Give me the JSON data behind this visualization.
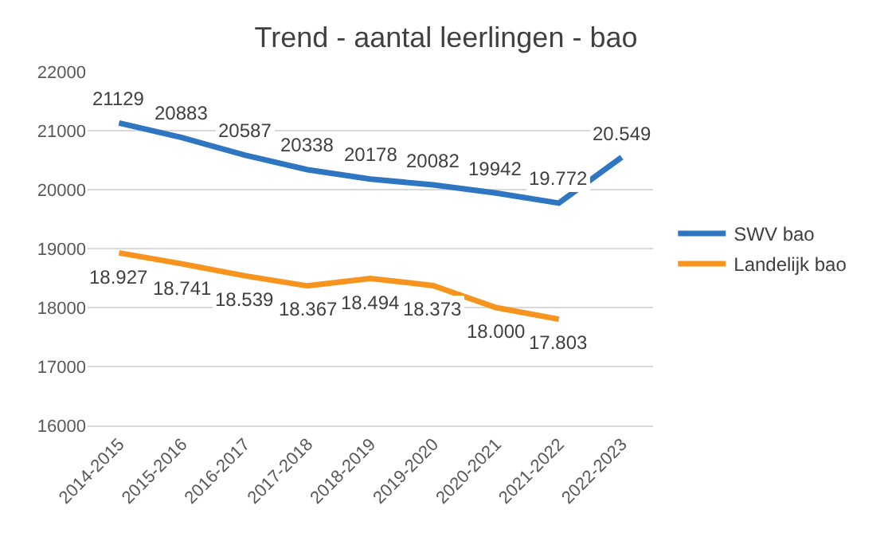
{
  "chart_data": {
    "type": "line",
    "title": "Trend - aantal leerlingen - bao",
    "categories": [
      "2014-2015",
      "2015-2016",
      "2016-2017",
      "2017-2018",
      "2018-2019",
      "2019-2020",
      "2020-2021",
      "2021-2022",
      "2022-2023"
    ],
    "series": [
      {
        "name": "SWV bao",
        "color": "#2e75c2",
        "values": [
          21129,
          20883,
          20587,
          20338,
          20178,
          20082,
          19942,
          19772,
          20549
        ],
        "value_labels": [
          "21129",
          "20883",
          "20587",
          "20338",
          "20178",
          "20082",
          "19942",
          "19.772",
          "20.549"
        ]
      },
      {
        "name": "Landelijk bao",
        "color": "#f7941d",
        "values": [
          18927,
          18741,
          18539,
          18367,
          18494,
          18373,
          18000,
          17803,
          null
        ],
        "value_labels": [
          "18.927",
          "18.741",
          "18.539",
          "18.367",
          "18.494",
          "18.373",
          "18.000",
          "17.803",
          null
        ]
      }
    ],
    "ylim": [
      16000,
      22000
    ],
    "yticks": [
      16000,
      17000,
      18000,
      19000,
      20000,
      21000,
      22000
    ],
    "grid": "y",
    "legend": "right",
    "marker": "none",
    "line_style": "solid"
  }
}
